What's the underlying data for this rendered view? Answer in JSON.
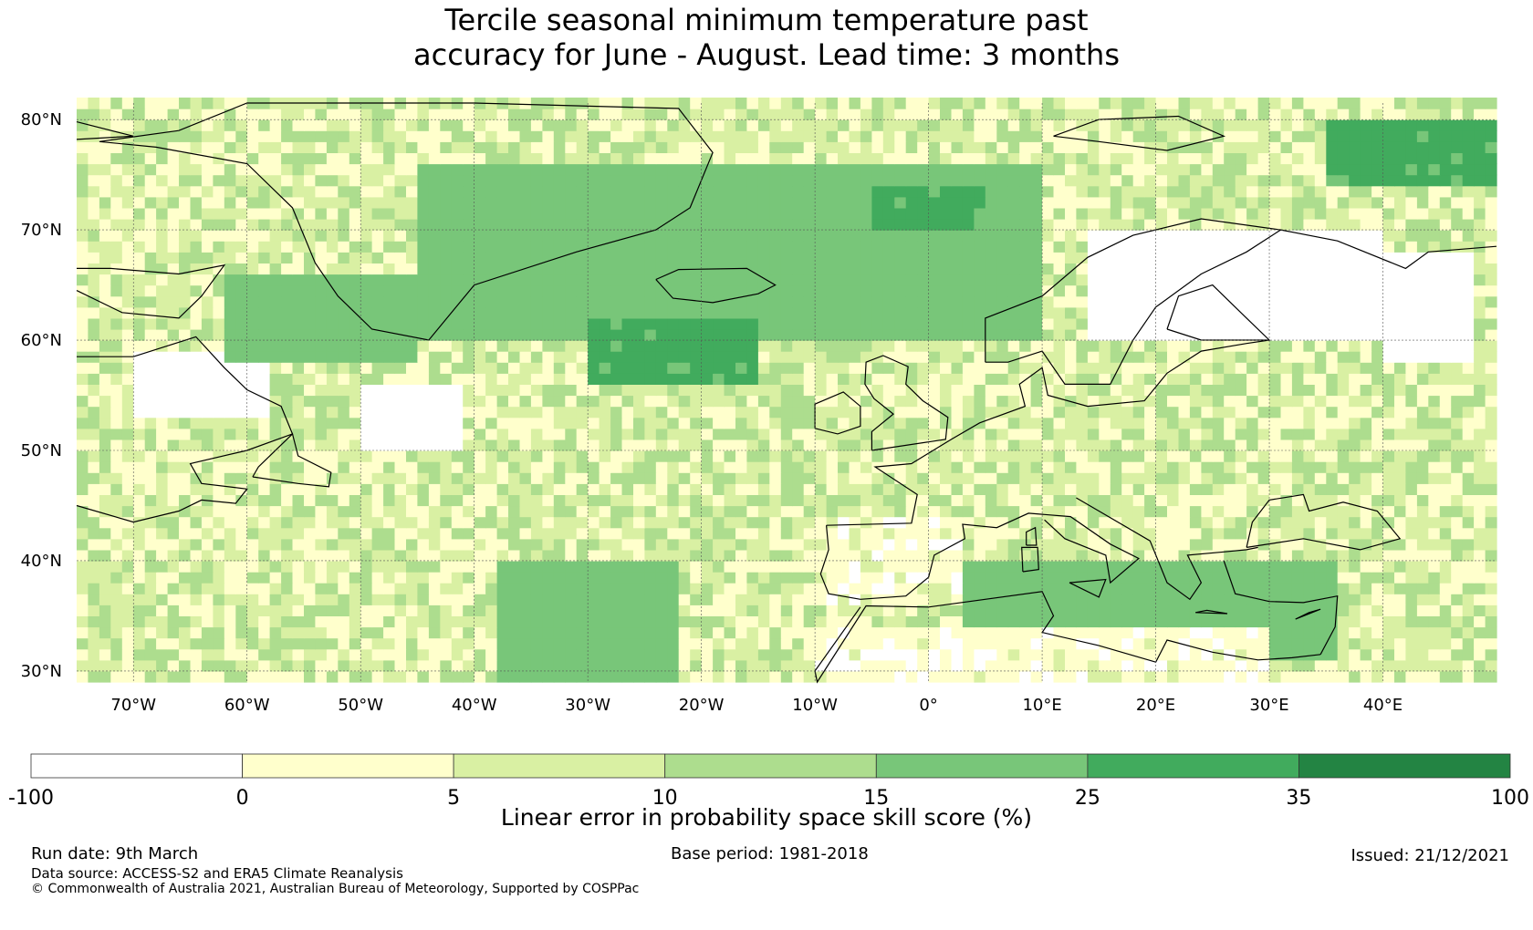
{
  "title": {
    "line1": "Tercile seasonal minimum temperature past",
    "line2": "accuracy for June - August. Lead time: 3 months"
  },
  "map": {
    "lat_labels": [
      "80°N",
      "70°N",
      "60°N",
      "50°N",
      "40°N",
      "30°N"
    ],
    "lat_values": [
      80,
      70,
      60,
      50,
      40,
      30
    ],
    "lon_labels": [
      "70°W",
      "60°W",
      "50°W",
      "40°W",
      "30°W",
      "20°W",
      "10°W",
      "0°",
      "10°E",
      "20°E",
      "30°E",
      "40°E"
    ],
    "lon_values": [
      -70,
      -60,
      -50,
      -40,
      -30,
      -20,
      -10,
      0,
      10,
      20,
      30,
      40
    ],
    "extent": {
      "lon_min": -75,
      "lon_max": 50,
      "lat_min": 29,
      "lat_max": 81.5
    },
    "gridlines": true,
    "score_regions": [
      {
        "name": "greenland-sea-band",
        "value": 20,
        "lon": [
          -45,
          10
        ],
        "lat": [
          60,
          76
        ]
      },
      {
        "name": "norwegian-sea",
        "value": 28,
        "lon": [
          -5,
          5
        ],
        "lat": [
          70,
          74
        ]
      },
      {
        "name": "iceland-south",
        "value": 28,
        "lon": [
          -30,
          -15
        ],
        "lat": [
          56,
          62
        ]
      },
      {
        "name": "scandinavia",
        "value": -50,
        "lon": [
          14,
          40
        ],
        "lat": [
          60,
          70
        ]
      },
      {
        "name": "white-sea-east",
        "value": -50,
        "lon": [
          40,
          48
        ],
        "lat": [
          58,
          68
        ]
      },
      {
        "name": "newfoundland-sea",
        "value": -50,
        "lon": [
          -50,
          -41
        ],
        "lat": [
          50,
          56
        ]
      },
      {
        "name": "labrador",
        "value": -50,
        "lon": [
          -70,
          -58
        ],
        "lat": [
          53,
          59
        ]
      },
      {
        "name": "mediterranean",
        "value": 20,
        "lon": [
          3,
          36
        ],
        "lat": [
          31,
          40
        ]
      },
      {
        "name": "barents-east",
        "value": 28,
        "lon": [
          35,
          50
        ],
        "lat": [
          74,
          80
        ]
      },
      {
        "name": "labrador-sea-band",
        "value": 20,
        "lon": [
          -62,
          -45
        ],
        "lat": [
          58,
          66
        ]
      },
      {
        "name": "iberia",
        "value": 2,
        "lon": [
          -10,
          3
        ],
        "lat": [
          36,
          44
        ]
      },
      {
        "name": "north-africa",
        "value": 2,
        "lon": [
          -10,
          30
        ],
        "lat": [
          29,
          34
        ]
      },
      {
        "name": "subtropical-atlantic",
        "value": 20,
        "lon": [
          -38,
          -22
        ],
        "lat": [
          29,
          40
        ]
      }
    ],
    "background_value": 7
  },
  "colorbar": {
    "tick_labels": [
      "-100",
      "0",
      "5",
      "10",
      "15",
      "25",
      "35",
      "100"
    ],
    "colors": [
      "#ffffff",
      "#ffffcc",
      "#d9f0a3",
      "#addd8e",
      "#78c679",
      "#41ab5d",
      "#238443"
    ],
    "label": "Linear error in probability space skill score (%)"
  },
  "footer": {
    "run_date": "Run date: 9th March",
    "base_period": "Base period: 1981-2018",
    "issued": "Issued: 21/12/2021",
    "data_source": "Data source: ACCESS-S2 and ERA5 Climate Reanalysis",
    "copyright": "© Commonwealth of Australia 2021, Australian Bureau of Meteorology, Supported by COSPPac"
  }
}
